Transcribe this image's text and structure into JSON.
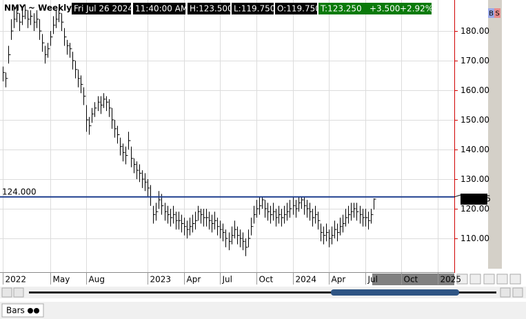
{
  "chart_data": {
    "type": "ohlc",
    "title": "NMY ~ Weekly",
    "header": {
      "date": "Fri Jul 26 2024",
      "time": "11:40:00 AM",
      "high": "H:123.500",
      "low": "L:119.750",
      "open": "O:119.750",
      "last": "T:123.250",
      "change": "+3.500",
      "change_pct": "+2.92%"
    },
    "xlim": [
      -1,
      162
    ],
    "ylim": [
      98.6,
      190.47
    ],
    "xticks": [
      {
        "value": 0,
        "label": "2022"
      },
      {
        "value": 17,
        "label": "May"
      },
      {
        "value": 30,
        "label": "Aug"
      },
      {
        "value": 52,
        "label": "2023"
      },
      {
        "value": 65,
        "label": "Apr"
      },
      {
        "value": 78,
        "label": "Jul"
      },
      {
        "value": 91,
        "label": "Oct"
      },
      {
        "value": 104,
        "label": "2024"
      },
      {
        "value": 117,
        "label": "Apr"
      },
      {
        "value": 130,
        "label": "Jul"
      },
      {
        "value": 143,
        "label": "Oct"
      },
      {
        "value": 156,
        "label": "2025"
      }
    ],
    "yticks": [
      {
        "value": 110,
        "label": "110.00"
      },
      {
        "value": 120,
        "label": "120.00"
      },
      {
        "value": 130,
        "label": "130.00"
      },
      {
        "value": 140,
        "label": "140.00"
      },
      {
        "value": 150,
        "label": "150.00"
      },
      {
        "value": 160,
        "label": "160.00"
      },
      {
        "value": 170,
        "label": "170.00"
      },
      {
        "value": 180,
        "label": "180.00"
      }
    ],
    "grid": true,
    "color": "#000000",
    "hline": {
      "value": 124,
      "label": "124.000",
      "color": "#1f3f8f"
    },
    "high": [
      168,
      166,
      175,
      184,
      188,
      188,
      186,
      187,
      189,
      187,
      187,
      186,
      187,
      184,
      179,
      175,
      176,
      180,
      185,
      187,
      188,
      186,
      181,
      177,
      176,
      173,
      170,
      167,
      165,
      161,
      155,
      151,
      154,
      156,
      158,
      158,
      159,
      158,
      157,
      154,
      150,
      148,
      144,
      142,
      141,
      146,
      141,
      137,
      136,
      135,
      133,
      132,
      130,
      128,
      121,
      122,
      126,
      125,
      122,
      121,
      120,
      121,
      119,
      119,
      118,
      117,
      116,
      117,
      118,
      119,
      121,
      120,
      120,
      120,
      119,
      118,
      119,
      117,
      116,
      115,
      113,
      112,
      114,
      116,
      114,
      113,
      112,
      110,
      113,
      117,
      121,
      123,
      124,
      124,
      123,
      122,
      121,
      122,
      120,
      121,
      120,
      121,
      122,
      123,
      124,
      123,
      124,
      124,
      124,
      123,
      122,
      120,
      121,
      119,
      115,
      114,
      115,
      113,
      114,
      116,
      115,
      117,
      118,
      120,
      121,
      122,
      122,
      122,
      121,
      120,
      120,
      119,
      120,
      123.5
    ],
    "low": [
      163,
      161,
      169,
      177,
      181,
      183,
      180,
      182,
      184,
      181,
      182,
      180,
      181,
      177,
      173,
      169,
      171,
      175,
      179,
      181,
      183,
      180,
      175,
      172,
      171,
      167,
      164,
      161,
      159,
      155,
      146,
      145,
      149,
      151,
      153,
      152,
      154,
      153,
      151,
      147,
      144,
      142,
      138,
      136,
      135,
      140,
      134,
      132,
      130,
      129,
      127,
      126,
      124,
      121,
      115,
      116,
      120,
      118,
      116,
      115,
      114,
      115,
      113,
      113,
      112,
      111,
      110,
      111,
      112,
      113,
      116,
      115,
      114,
      114,
      113,
      112,
      113,
      111,
      110,
      109,
      107,
      106,
      108,
      110,
      108,
      107,
      106,
      104,
      107,
      111,
      115,
      117,
      118,
      120,
      117,
      116,
      115,
      116,
      114,
      115,
      114,
      115,
      116,
      117,
      118,
      117,
      119,
      120,
      118,
      117,
      116,
      114,
      115,
      113,
      109,
      108,
      109,
      107,
      108,
      110,
      109,
      111,
      112,
      114,
      115,
      116,
      117,
      116,
      115,
      114,
      114,
      113,
      115,
      119.75
    ],
    "close": [
      166,
      164,
      172,
      180,
      184,
      186,
      183,
      185,
      187,
      184,
      185,
      183,
      184,
      180,
      176,
      172,
      174,
      178,
      182,
      184,
      186,
      183,
      178,
      175,
      174,
      170,
      167,
      164,
      162,
      158,
      150,
      148,
      152,
      154,
      156,
      155,
      157,
      156,
      154,
      150,
      147,
      145,
      141,
      139,
      138,
      143,
      137,
      135,
      133,
      132,
      130,
      129,
      127,
      124,
      118,
      119,
      123,
      121,
      119,
      118,
      117,
      118,
      116,
      116,
      115,
      114,
      113,
      114,
      115,
      116,
      119,
      118,
      117,
      117,
      116,
      115,
      116,
      114,
      113,
      112,
      110,
      109,
      111,
      113,
      111,
      110,
      109,
      107,
      110,
      114,
      118,
      120,
      121,
      123,
      120,
      119,
      118,
      119,
      117,
      118,
      117,
      118,
      119,
      120,
      121,
      120,
      122,
      123,
      121,
      120,
      119,
      117,
      118,
      116,
      112,
      111,
      112,
      110,
      111,
      113,
      112,
      114,
      115,
      117,
      118,
      119,
      120,
      119,
      118,
      117,
      117,
      116,
      118,
      123.25
    ]
  },
  "ui": {
    "buy": "B",
    "sell": "S",
    "style": "Bars"
  }
}
